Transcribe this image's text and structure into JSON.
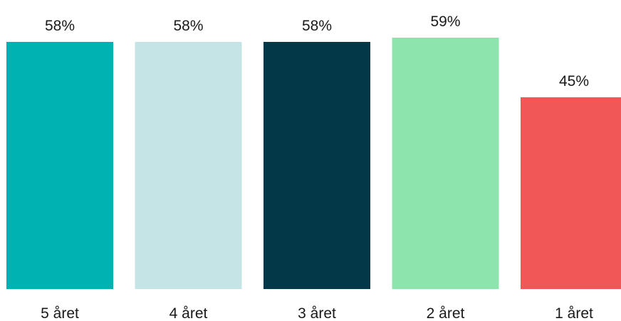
{
  "chart_data": {
    "type": "bar",
    "categories": [
      "5 året",
      "4 året",
      "3 året",
      "2 året",
      "1 året"
    ],
    "values": [
      58,
      58,
      58,
      59,
      45
    ],
    "value_labels": [
      "58%",
      "58%",
      "58%",
      "59%",
      "45%"
    ],
    "colors": [
      "#00B2B2",
      "#C5E4E6",
      "#023847",
      "#8DE4AC",
      "#F25757"
    ],
    "unit": "%",
    "ylim": [
      0,
      59
    ],
    "grid": false,
    "legend": "none"
  }
}
